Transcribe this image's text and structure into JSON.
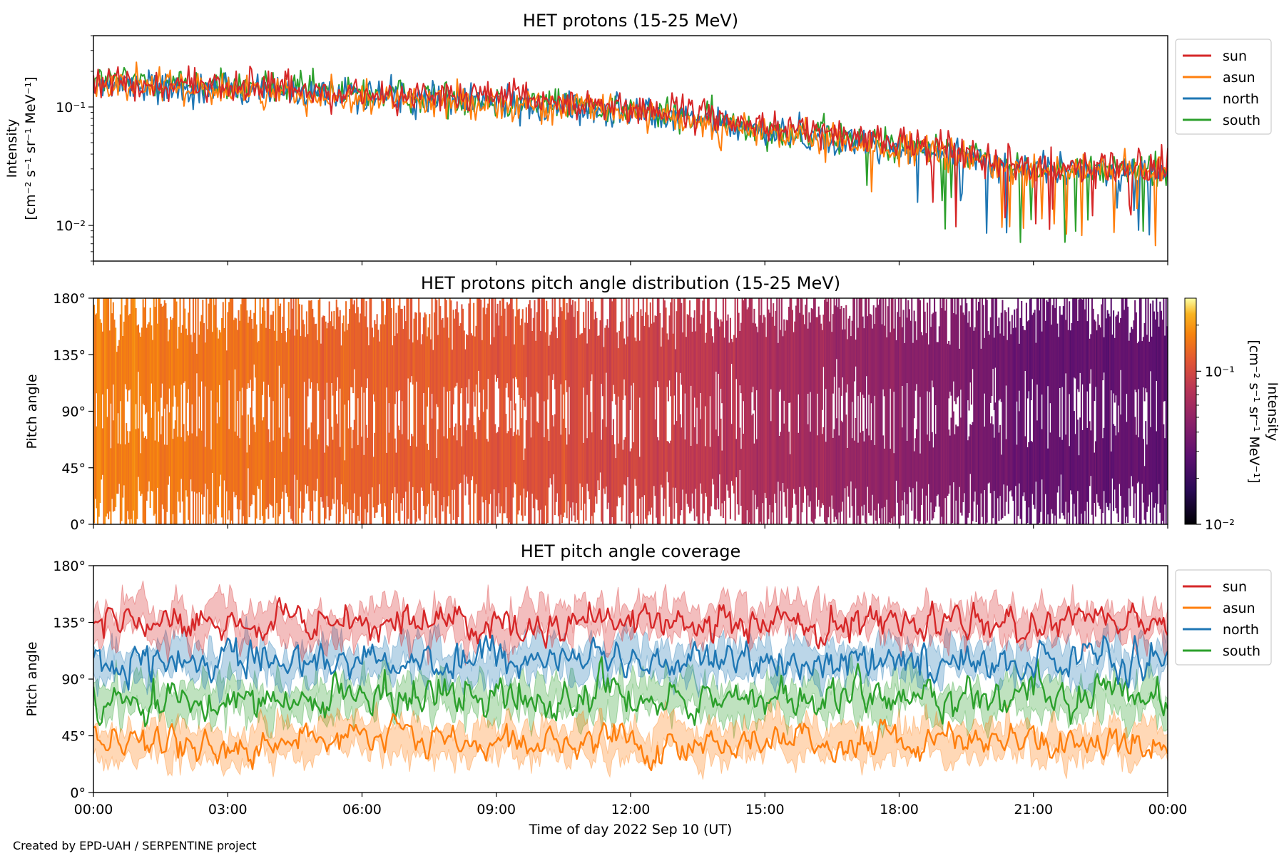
{
  "figure": {
    "credit": "Created by EPD-UAH / SERPENTINE project",
    "xlabel": "Time of day 2022 Sep 10 (UT)",
    "x_ticks": [
      "00:00",
      "03:00",
      "06:00",
      "09:00",
      "12:00",
      "15:00",
      "18:00",
      "21:00",
      "00:00"
    ]
  },
  "series_colors": {
    "sun": "#d62728",
    "asun": "#ff7f0e",
    "north": "#1f77b4",
    "south": "#2ca02c"
  },
  "chart_data": [
    {
      "type": "line",
      "title": "HET protons (15-25 MeV)",
      "ylabel": [
        "Intensity",
        "[cm⁻² s⁻¹ sr⁻¹ MeV⁻¹]"
      ],
      "yscale": "log",
      "ylim": [
        0.005,
        0.4
      ],
      "y_ticks": [
        "10⁻¹",
        "10⁻²"
      ],
      "y_tick_values": [
        0.1,
        0.01
      ],
      "xlim_hours": [
        0,
        24
      ],
      "legend": "upper-right outside",
      "series": [
        {
          "name": "sun",
          "trend": [
            [
              0,
              0.17
            ],
            [
              3,
              0.15
            ],
            [
              6,
              0.13
            ],
            [
              9,
              0.12
            ],
            [
              12,
              0.1
            ],
            [
              13.5,
              0.085
            ],
            [
              15,
              0.07
            ],
            [
              18,
              0.05
            ],
            [
              21,
              0.033
            ],
            [
              24,
              0.03
            ]
          ]
        },
        {
          "name": "asun",
          "trend": [
            [
              0,
              0.16
            ],
            [
              3,
              0.14
            ],
            [
              6,
              0.12
            ],
            [
              9,
              0.11
            ],
            [
              12,
              0.09
            ],
            [
              13.5,
              0.075
            ],
            [
              15,
              0.06
            ],
            [
              18,
              0.045
            ],
            [
              21,
              0.03
            ],
            [
              24,
              0.028
            ]
          ]
        },
        {
          "name": "north",
          "trend": [
            [
              0,
              0.16
            ],
            [
              3,
              0.14
            ],
            [
              6,
              0.125
            ],
            [
              9,
              0.11
            ],
            [
              12,
              0.09
            ],
            [
              13.5,
              0.078
            ],
            [
              15,
              0.062
            ],
            [
              18,
              0.046
            ],
            [
              21,
              0.03
            ],
            [
              24,
              0.028
            ]
          ]
        },
        {
          "name": "south",
          "trend": [
            [
              0,
              0.17
            ],
            [
              3,
              0.15
            ],
            [
              6,
              0.13
            ],
            [
              9,
              0.115
            ],
            [
              12,
              0.095
            ],
            [
              13.5,
              0.08
            ],
            [
              15,
              0.065
            ],
            [
              18,
              0.048
            ],
            [
              21,
              0.031
            ],
            [
              24,
              0.029
            ]
          ]
        }
      ]
    },
    {
      "type": "heatmap",
      "title": "HET protons pitch angle distribution (15-25 MeV)",
      "ylabel": "Pitch angle",
      "y_ticks": [
        "180°",
        "135°",
        "90°",
        "45°",
        "0°"
      ],
      "y_tick_values": [
        180,
        135,
        90,
        45,
        0
      ],
      "ylim": [
        0,
        180
      ],
      "colorbar": {
        "label": [
          "Intensity",
          "[cm⁻² s⁻¹ sr⁻¹ MeV⁻¹]"
        ],
        "scale": "log",
        "range": [
          0.01,
          0.3
        ],
        "ticks": [
          "10⁻¹",
          "10⁻²"
        ],
        "tick_values": [
          0.1,
          0.01
        ],
        "colormap": "inferno"
      },
      "intensity_trend": [
        [
          0,
          0.17
        ],
        [
          3,
          0.15
        ],
        [
          6,
          0.13
        ],
        [
          9,
          0.115
        ],
        [
          12,
          0.095
        ],
        [
          13.5,
          0.08
        ],
        [
          15,
          0.065
        ],
        [
          18,
          0.048
        ],
        [
          21,
          0.031
        ],
        [
          24,
          0.029
        ]
      ]
    },
    {
      "type": "line",
      "title": "HET pitch angle coverage",
      "ylabel": "Pitch angle",
      "y_ticks": [
        "180°",
        "135°",
        "90°",
        "45°",
        "0°"
      ],
      "y_tick_values": [
        180,
        135,
        90,
        45,
        0
      ],
      "ylim": [
        0,
        180
      ],
      "legend": "upper-right outside",
      "series": [
        {
          "name": "sun",
          "mean_pitch_angle": 135,
          "spread": 20,
          "band_halfwidth": 12
        },
        {
          "name": "asun",
          "mean_pitch_angle": 40,
          "spread": 18,
          "band_halfwidth": 12
        },
        {
          "name": "north",
          "mean_pitch_angle": 105,
          "spread": 20,
          "band_halfwidth": 12
        },
        {
          "name": "south",
          "mean_pitch_angle": 75,
          "spread": 22,
          "band_halfwidth": 12
        }
      ]
    }
  ]
}
